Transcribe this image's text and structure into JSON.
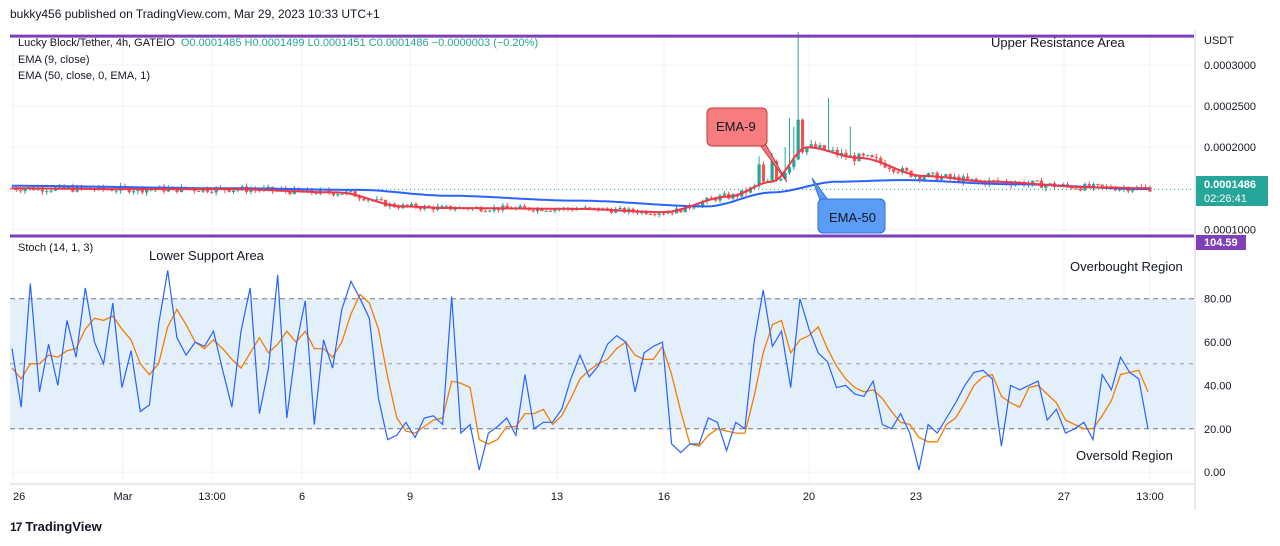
{
  "header": {
    "published": "bukky456 published on TradingView.com, Mar 29, 2023 10:33 UTC+1"
  },
  "footer": {
    "brand": "TradingView",
    "icon": "tradingview-logo-icon"
  },
  "currency": "USDT",
  "legend": {
    "symbol": "Lucky Block/Tether, 4h, GATEIO",
    "ohlc": "O0.0001485  H0.0001499  L0.0001451  C0.0001486  −0.0000003 (−0.20%)",
    "ema9": "EMA (9, close)",
    "ema50": "EMA (50, close, 0, EMA, 1)",
    "stoch": "Stoch (14, 1, 3)"
  },
  "annotations": {
    "upper_resistance": "Upper Resistance Area",
    "lower_support": "Lower Support Area",
    "overbought": "Overbought Region",
    "oversold": "Oversold Region",
    "ema9_callout": "EMA-9",
    "ema50_callout": "EMA-50"
  },
  "price_labels": {
    "current_price": "0.0001486",
    "countdown": "02:26:41",
    "stoch_level": "104.59"
  },
  "colors": {
    "up": "#26a69a",
    "down": "#ef5350",
    "ema9": "#f23645",
    "ema50": "#2962ff",
    "resistance": "#7e3fb8",
    "stoch_k": "#2962ff",
    "stoch_d": "#f57c00",
    "stoch_band": "#e3f0fb",
    "callout_red": "#f77c80",
    "callout_blue": "#5b9cf6"
  },
  "chart_data": [
    {
      "type": "candlestick",
      "title": "Lucky Block/Tether, 4h, GATEIO",
      "ylim": [
        9.2e-05,
        0.00034
      ],
      "y_ticks": [
        0.0001,
        0.00015,
        0.0002,
        0.00025,
        0.0003
      ],
      "y_tick_labels": [
        "0.0001000",
        "0.0001500",
        "0.0002000",
        "0.0002500",
        "0.0003000"
      ],
      "x_tick_labels": [
        "26",
        "Mar",
        "13:00",
        "6",
        "9",
        "13",
        "16",
        "20",
        "23",
        "27",
        "13:00"
      ],
      "resistance_level": 0.000335,
      "last_price": 0.0001486,
      "series": [
        {
          "name": "EMA (9, close)",
          "anchors": [
            [
              0,
              0.00015
            ],
            [
              25,
              0.000149
            ],
            [
              50,
              0.000149
            ],
            [
              75,
              0.000145
            ],
            [
              90,
              0.000128
            ],
            [
              100,
              0.000126
            ],
            [
              130,
              0.000125
            ],
            [
              150,
              0.000121
            ],
            [
              165,
              0.00014
            ],
            [
              175,
              0.000158
            ],
            [
              183,
              0.0002
            ],
            [
              195,
              0.000187
            ],
            [
              210,
              0.000165
            ],
            [
              225,
              0.000158
            ],
            [
              250,
              0.000151
            ],
            [
              262,
              0.00015
            ]
          ]
        },
        {
          "name": "EMA (50, close, 0, EMA, 1)",
          "anchors": [
            [
              0,
              0.000153
            ],
            [
              50,
              0.00015
            ],
            [
              80,
              0.000148
            ],
            [
              100,
              0.000141
            ],
            [
              130,
              0.000135
            ],
            [
              160,
              0.000128
            ],
            [
              175,
              0.000145
            ],
            [
              190,
              0.000158
            ],
            [
              205,
              0.00016
            ],
            [
              230,
              0.000155
            ],
            [
              262,
              0.000149
            ]
          ]
        }
      ]
    },
    {
      "type": "line",
      "title": "Stoch (14, 1, 3)",
      "ylim": [
        -5,
        108
      ],
      "y_ticks": [
        0,
        20,
        40,
        60,
        80
      ],
      "y_tick_labels": [
        "0.00",
        "20.00",
        "40.00",
        "60.00",
        "80.00"
      ],
      "band": [
        20,
        80
      ],
      "midline": 50,
      "series": [
        {
          "name": "%K",
          "values": [
            57,
            30,
            87,
            37,
            59,
            40,
            70,
            53,
            85,
            60,
            50,
            78,
            39,
            56,
            28,
            31,
            68,
            93,
            62,
            54,
            60,
            58,
            65,
            47,
            30,
            65,
            85,
            27,
            48,
            91,
            25,
            58,
            79,
            22,
            61,
            48,
            75,
            88,
            80,
            71,
            34,
            15,
            17,
            23,
            16,
            25,
            26,
            22,
            81,
            18,
            22,
            1,
            18,
            21,
            25,
            17,
            45,
            20,
            23,
            23,
            29,
            43,
            54,
            44,
            49,
            59,
            63,
            60,
            37,
            55,
            58,
            60,
            13,
            9,
            13,
            13,
            25,
            23,
            10,
            23,
            20,
            60,
            84,
            58,
            65,
            39,
            80,
            66,
            55,
            51,
            39,
            40,
            36,
            35,
            42,
            22,
            20,
            27,
            18,
            1,
            22,
            18,
            25,
            32,
            40,
            46,
            47,
            43,
            12,
            40,
            38,
            40,
            42,
            24,
            29,
            18,
            20,
            23,
            15,
            45,
            38,
            53,
            46,
            43,
            20
          ]
        },
        {
          "name": "%D",
          "values": [
            48,
            43,
            50,
            50,
            54,
            53,
            56,
            57,
            66,
            71,
            70,
            72,
            66,
            61,
            50,
            45,
            50,
            67,
            75,
            68,
            60,
            57,
            61,
            57,
            52,
            48,
            55,
            62,
            55,
            59,
            65,
            60,
            65,
            57,
            57,
            53,
            60,
            73,
            82,
            78,
            66,
            44,
            25,
            19,
            18,
            21,
            24,
            25,
            42,
            41,
            39,
            15,
            13,
            15,
            21,
            21,
            27,
            27,
            29,
            22,
            26,
            34,
            43,
            47,
            50,
            52,
            57,
            60,
            54,
            52,
            52,
            58,
            45,
            28,
            13,
            12,
            17,
            20,
            19,
            18,
            18,
            35,
            55,
            68,
            70,
            55,
            61,
            63,
            67,
            57,
            49,
            43,
            39,
            37,
            38,
            34,
            28,
            23,
            22,
            16,
            14,
            14,
            22,
            25,
            32,
            40,
            44,
            45,
            35,
            32,
            30,
            39,
            40,
            36,
            32,
            24,
            22,
            20,
            20,
            26,
            33,
            45,
            46,
            47,
            37
          ]
        }
      ]
    }
  ]
}
